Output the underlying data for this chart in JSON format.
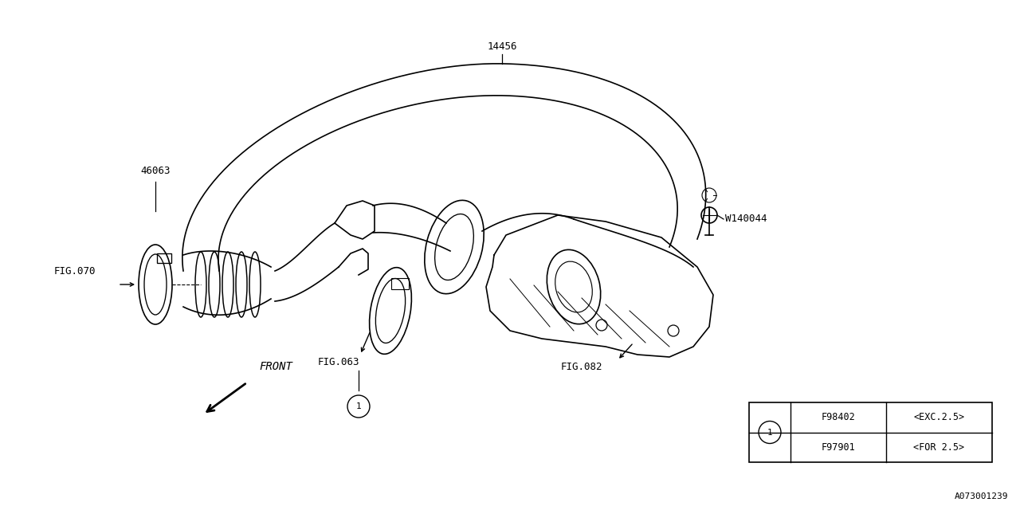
{
  "bg_color": "#ffffff",
  "line_color": "#000000",
  "fig_width": 12.8,
  "fig_height": 6.4,
  "footer_text": "A073001239",
  "table_rows": [
    [
      "F98402",
      "<EXC.2.5>"
    ],
    [
      "F97901",
      "<FOR 2.5>"
    ]
  ]
}
